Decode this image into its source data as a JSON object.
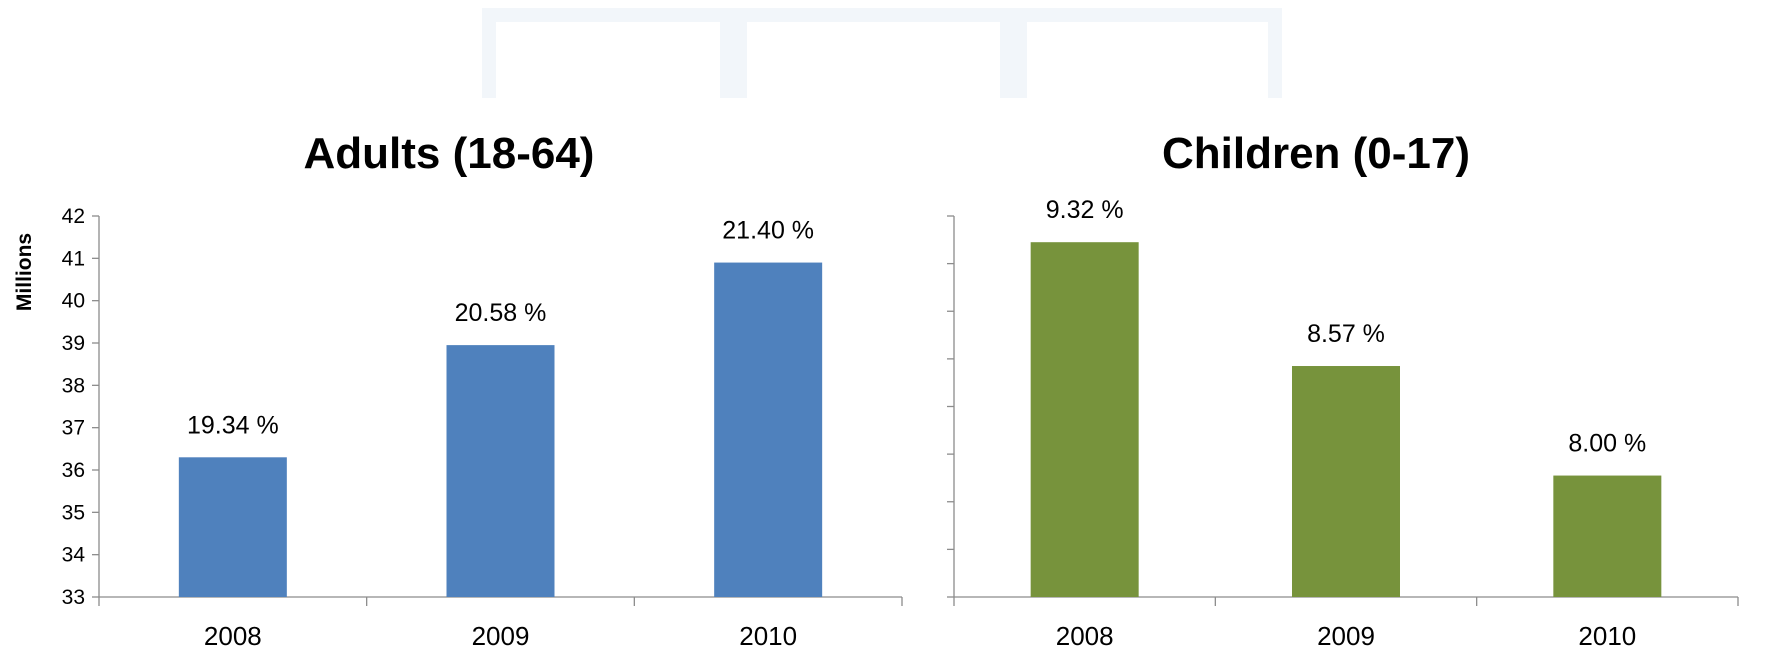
{
  "chart_data": [
    {
      "type": "bar",
      "title": "Adults (18-64)",
      "ylabel": "Millions",
      "categories": [
        "2008",
        "2009",
        "2010"
      ],
      "values": [
        36.3,
        38.95,
        40.9
      ],
      "data_labels": [
        "19.34 %",
        "20.58 %",
        "21.40 %"
      ],
      "ylim": [
        33,
        42
      ],
      "yticks": [
        "33",
        "34",
        "35",
        "36",
        "37",
        "38",
        "39",
        "40",
        "41",
        "42"
      ],
      "color": "#4f81bd",
      "grid": false
    },
    {
      "type": "bar",
      "title": "Children (0-17)",
      "ylabel": "",
      "categories": [
        "2008",
        "2009",
        "2010"
      ],
      "values": [
        7.45,
        4.85,
        2.55
      ],
      "data_labels": [
        "9.32 %",
        "8.57 %",
        "8.00 %"
      ],
      "ylim": [
        0,
        8
      ],
      "yticks": [],
      "color": "#77933c",
      "grid": false
    }
  ]
}
